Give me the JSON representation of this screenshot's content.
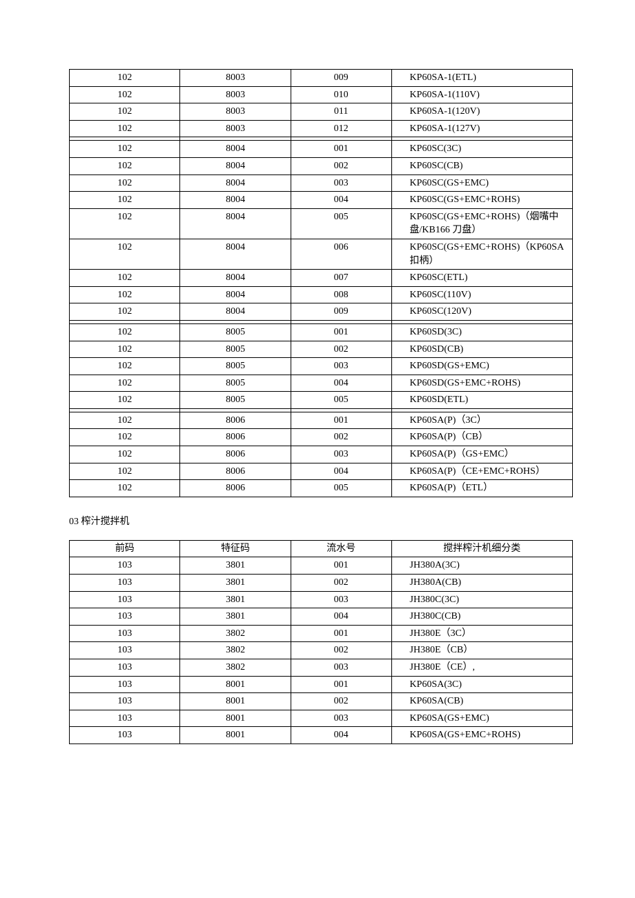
{
  "table1": {
    "headers": null,
    "column_widths": [
      "22%",
      "22%",
      "20%",
      "36%"
    ],
    "border_color": "#000000",
    "font_size": 14,
    "rows": [
      [
        "102",
        "8003",
        "009",
        "KP60SA-1(ETL)"
      ],
      [
        "102",
        "8003",
        "010",
        "KP60SA-1(110V)"
      ],
      [
        "102",
        "8003",
        "011",
        "KP60SA-1(120V)"
      ],
      [
        "102",
        "8003",
        "012",
        "KP60SA-1(127V)"
      ],
      [
        "",
        "",
        "",
        ""
      ],
      [
        "102",
        "8004",
        "001",
        "KP60SC(3C)"
      ],
      [
        "102",
        "8004",
        "002",
        "KP60SC(CB)"
      ],
      [
        "102",
        "8004",
        "003",
        "KP60SC(GS+EMC)"
      ],
      [
        "102",
        "8004",
        "004",
        "KP60SC(GS+EMC+ROHS)"
      ],
      [
        "102",
        "8004",
        "005",
        " KP60SC(GS+EMC+ROHS)（烟嘴中盘/KB166 刀盘）"
      ],
      [
        "102",
        "8004",
        "006",
        " KP60SC(GS+EMC+ROHS)（KP60SA 扣柄）"
      ],
      [
        "102",
        "8004",
        "007",
        "KP60SC(ETL)"
      ],
      [
        "102",
        "8004",
        "008",
        "KP60SC(110V)"
      ],
      [
        "102",
        "8004",
        "009",
        "KP60SC(120V)"
      ],
      [
        "",
        "",
        "",
        ""
      ],
      [
        "102",
        "8005",
        "001",
        "KP60SD(3C)"
      ],
      [
        "102",
        "8005",
        "002",
        "KP60SD(CB)"
      ],
      [
        "102",
        "8005",
        "003",
        "KP60SD(GS+EMC)"
      ],
      [
        "102",
        "8005",
        "004",
        "KP60SD(GS+EMC+ROHS)"
      ],
      [
        "102",
        "8005",
        "005",
        "KP60SD(ETL)"
      ],
      [
        "",
        "",
        "",
        ""
      ],
      [
        "102",
        "8006",
        "001",
        "KP60SA(P)（3C）"
      ],
      [
        "102",
        "8006",
        "002",
        "KP60SA(P)（CB）"
      ],
      [
        "102",
        "8006",
        "003",
        "KP60SA(P)（GS+EMC）"
      ],
      [
        "102",
        "8006",
        "004",
        "KP60SA(P)（CE+EMC+ROHS）"
      ],
      [
        "102",
        "8006",
        "005",
        "KP60SA(P)（ETL）"
      ]
    ]
  },
  "section_heading": "03  榨汁搅拌机",
  "table2": {
    "headers": [
      "前码",
      "特征码",
      "流水号",
      "搅拌榨汁机细分类"
    ],
    "column_widths": [
      "22%",
      "22%",
      "20%",
      "36%"
    ],
    "border_color": "#000000",
    "font_size": 14,
    "rows": [
      [
        "103",
        "3801",
        "001",
        "JH380A(3C)"
      ],
      [
        "103",
        "3801",
        "002",
        "JH380A(CB)"
      ],
      [
        "103",
        "3801",
        "003",
        "JH380C(3C)"
      ],
      [
        "103",
        "3801",
        "004",
        "JH380C(CB)"
      ],
      [
        "103",
        "3802",
        "001",
        "JH380E（3C）"
      ],
      [
        "103",
        "3802",
        "002",
        "JH380E（CB）"
      ],
      [
        "103",
        "3802",
        "003",
        "JH380E（CE）,"
      ],
      [
        "103",
        "8001",
        "001",
        "KP60SA(3C)"
      ],
      [
        "103",
        "8001",
        "002",
        "KP60SA(CB)"
      ],
      [
        "103",
        "8001",
        "003",
        "KP60SA(GS+EMC)"
      ],
      [
        "103",
        "8001",
        "004",
        "KP60SA(GS+EMC+ROHS)"
      ]
    ]
  }
}
